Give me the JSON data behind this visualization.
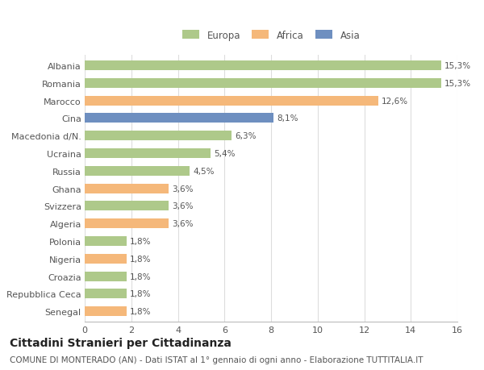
{
  "categories": [
    "Albania",
    "Romania",
    "Marocco",
    "Cina",
    "Macedonia d/N.",
    "Ucraina",
    "Russia",
    "Ghana",
    "Svizzera",
    "Algeria",
    "Polonia",
    "Nigeria",
    "Croazia",
    "Repubblica Ceca",
    "Senegal"
  ],
  "values": [
    15.3,
    15.3,
    12.6,
    8.1,
    6.3,
    5.4,
    4.5,
    3.6,
    3.6,
    3.6,
    1.8,
    1.8,
    1.8,
    1.8,
    1.8
  ],
  "labels": [
    "15,3%",
    "15,3%",
    "12,6%",
    "8,1%",
    "6,3%",
    "5,4%",
    "4,5%",
    "3,6%",
    "3,6%",
    "3,6%",
    "1,8%",
    "1,8%",
    "1,8%",
    "1,8%",
    "1,8%"
  ],
  "continents": [
    "Europa",
    "Europa",
    "Africa",
    "Asia",
    "Europa",
    "Europa",
    "Europa",
    "Africa",
    "Europa",
    "Africa",
    "Europa",
    "Africa",
    "Europa",
    "Europa",
    "Africa"
  ],
  "colors": {
    "Europa": "#aec98a",
    "Africa": "#f5b87a",
    "Asia": "#6e8fc0"
  },
  "xlim": [
    0,
    16
  ],
  "xticks": [
    0,
    2,
    4,
    6,
    8,
    10,
    12,
    14,
    16
  ],
  "title": "Cittadini Stranieri per Cittadinanza",
  "subtitle": "COMUNE DI MONTERADO (AN) - Dati ISTAT al 1° gennaio di ogni anno - Elaborazione TUTTITALIA.IT",
  "background_color": "#ffffff",
  "bar_height": 0.55,
  "label_fontsize": 7.5,
  "ytick_fontsize": 8.0,
  "xtick_fontsize": 8.0,
  "title_fontsize": 10,
  "subtitle_fontsize": 7.5
}
